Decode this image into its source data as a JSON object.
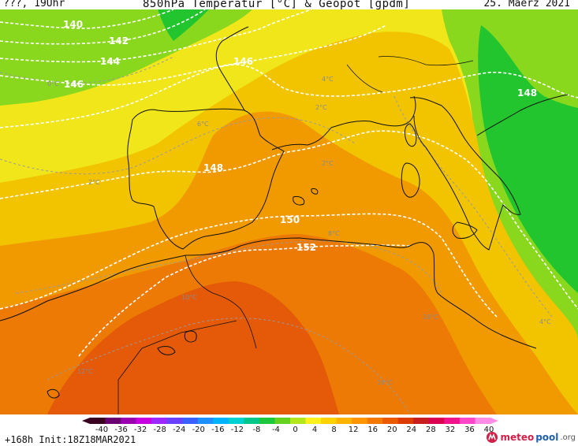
{
  "header": {
    "left": "???, 19Uhr",
    "title": "850hPa Temperatur [°C] & Geopot [gpdm]",
    "date": "25. Maerz 2021"
  },
  "footer": {
    "init": "+168h  Init:18Z18MAR2021",
    "brand_main": "meteo",
    "brand_pool": "pool",
    "brand_org": ".org"
  },
  "scale": {
    "ticks": [
      "-40",
      "-36",
      "-32",
      "-28",
      "-24",
      "-20",
      "-16",
      "-12",
      "-8",
      "-4",
      "0",
      "4",
      "8",
      "12",
      "16",
      "20",
      "24",
      "28",
      "32",
      "36",
      "40"
    ],
    "colors": [
      "#3a0020",
      "#6a0070",
      "#9a00b0",
      "#c800e0",
      "#9a28ff",
      "#6a40ff",
      "#3a60ff",
      "#1e90ff",
      "#00b4ff",
      "#00d2d2",
      "#00c88c",
      "#1ec83c",
      "#64d21e",
      "#b4e61e",
      "#fff01e",
      "#ffd200",
      "#ffb400",
      "#ff9600",
      "#f57800",
      "#eb5a00",
      "#dc3c00",
      "#c81e1e",
      "#dc0050",
      "#f0148c",
      "#ff46c8",
      "#ff8ce6"
    ]
  },
  "geopotential_labels": [
    "140",
    "142",
    "144",
    "146",
    "146",
    "148",
    "148",
    "150",
    "152"
  ],
  "isotherm_labels": [
    "0°C",
    "2°C",
    "6°C",
    "4°C",
    "2°C",
    "2°C",
    "8°C",
    "10°C",
    "12°C",
    "10°C",
    "16°C",
    "12°C",
    "4°C"
  ],
  "colors": {
    "green": "#22c52e",
    "lightgreen": "#8ad81e",
    "yellow": "#f0e61a",
    "amber": "#f2c400",
    "orange": "#f09a00",
    "darkorange": "#ec7a05",
    "redorange": "#e45a08"
  }
}
